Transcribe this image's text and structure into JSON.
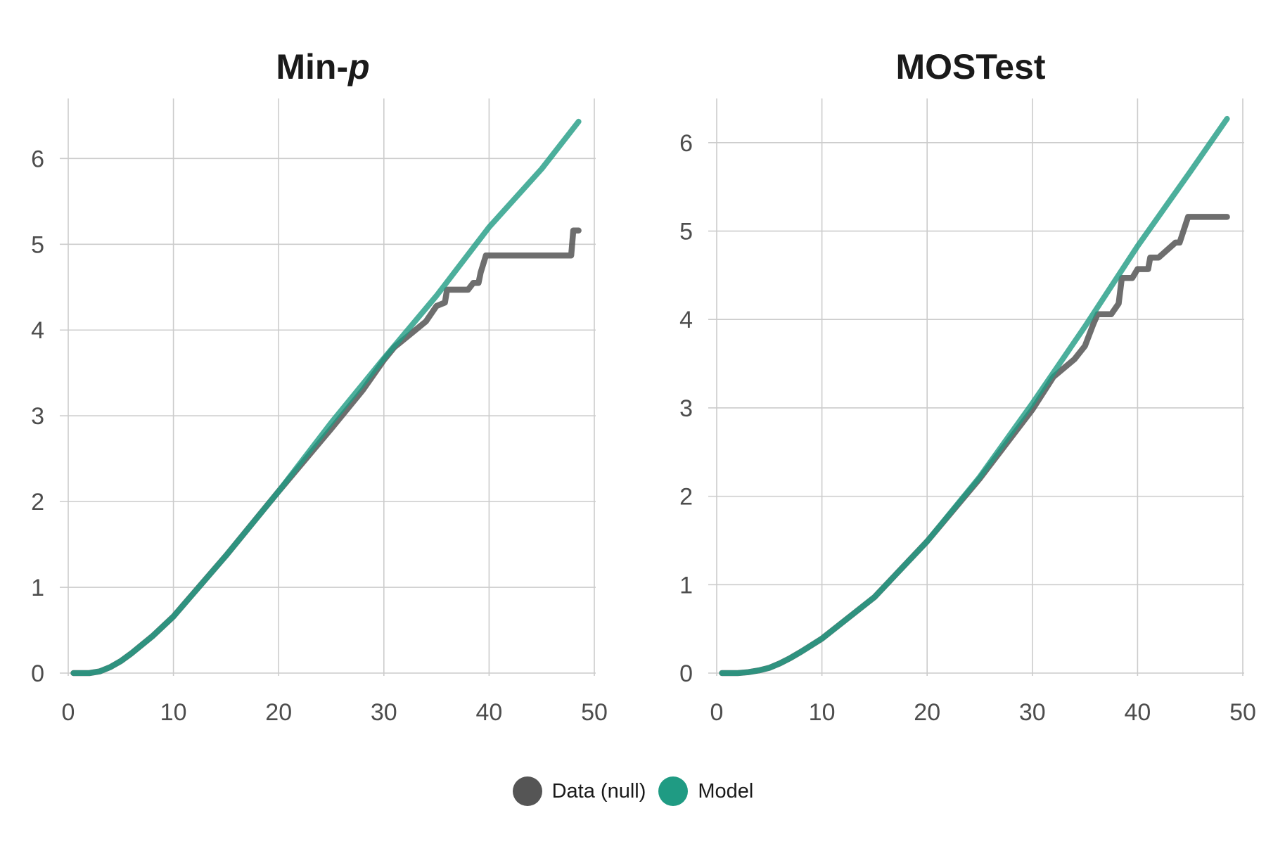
{
  "chart_data": [
    {
      "type": "line",
      "title": "Min-p",
      "title_prefix": "Min-",
      "title_italic": "p",
      "xlabel": "",
      "ylabel": "",
      "xlim": [
        0,
        50
      ],
      "ylim": [
        0,
        6.7
      ],
      "xticks": [
        "0",
        "10",
        "20",
        "30",
        "40",
        "50"
      ],
      "yticks": [
        "0",
        "1",
        "2",
        "3",
        "4",
        "5",
        "6"
      ],
      "grid": true,
      "series": [
        {
          "name": "Model",
          "color": "#1f9b83",
          "x": [
            0.5,
            2,
            3,
            4,
            5,
            6,
            7,
            8,
            10,
            15,
            20,
            25,
            30,
            35,
            40,
            45,
            48.5
          ],
          "y": [
            0,
            0,
            0.02,
            0.07,
            0.14,
            0.23,
            0.33,
            0.43,
            0.66,
            1.37,
            2.12,
            2.92,
            3.67,
            4.4,
            5.2,
            5.88,
            6.43
          ]
        },
        {
          "name": "Data (null)",
          "color": "#555555",
          "x": [
            0.5,
            2,
            3,
            4,
            5,
            6,
            7,
            8,
            10,
            15,
            20,
            25,
            28,
            30,
            31,
            32,
            33,
            34,
            35,
            35.8,
            36,
            38,
            38.5,
            39,
            39.2,
            39.7,
            44,
            47.8,
            48,
            48.5
          ],
          "y": [
            0,
            0,
            0.02,
            0.07,
            0.14,
            0.23,
            0.33,
            0.43,
            0.66,
            1.37,
            2.12,
            2.85,
            3.3,
            3.65,
            3.8,
            3.9,
            4.0,
            4.1,
            4.28,
            4.32,
            4.47,
            4.47,
            4.55,
            4.55,
            4.67,
            4.87,
            4.87,
            4.87,
            5.16,
            5.16
          ]
        }
      ]
    },
    {
      "type": "line",
      "title": "MOSTest",
      "title_prefix": "MOSTest",
      "title_italic": "",
      "xlabel": "",
      "ylabel": "",
      "xlim": [
        0,
        50
      ],
      "ylim": [
        0,
        6.5
      ],
      "xticks": [
        "0",
        "10",
        "20",
        "30",
        "40",
        "50"
      ],
      "yticks": [
        "0",
        "1",
        "2",
        "3",
        "4",
        "5",
        "6"
      ],
      "grid": true,
      "series": [
        {
          "name": "Model",
          "color": "#1f9b83",
          "x": [
            0.5,
            2,
            3,
            4,
            5,
            6,
            7,
            8,
            10,
            15,
            20,
            25,
            30,
            35,
            40,
            45,
            48.5
          ],
          "y": [
            0,
            0,
            0.01,
            0.03,
            0.06,
            0.11,
            0.17,
            0.24,
            0.39,
            0.86,
            1.49,
            2.22,
            3.05,
            3.92,
            4.83,
            5.67,
            6.27
          ]
        },
        {
          "name": "Data (null)",
          "color": "#555555",
          "x": [
            0.5,
            2,
            3,
            4,
            5,
            6,
            7,
            8,
            10,
            15,
            20,
            25,
            30,
            32,
            34,
            35,
            35.8,
            36.2,
            37.5,
            38.2,
            38.5,
            39.5,
            40,
            41,
            41.2,
            42,
            43.6,
            44,
            44.8,
            46,
            48.5
          ],
          "y": [
            0,
            0,
            0.01,
            0.03,
            0.06,
            0.11,
            0.17,
            0.24,
            0.39,
            0.86,
            1.49,
            2.2,
            2.98,
            3.35,
            3.55,
            3.7,
            3.95,
            4.06,
            4.06,
            4.18,
            4.47,
            4.47,
            4.57,
            4.57,
            4.7,
            4.7,
            4.87,
            4.87,
            5.16,
            5.16,
            5.16
          ]
        }
      ]
    }
  ],
  "legend": {
    "items": [
      {
        "label": "Data (null)",
        "color": "#555555"
      },
      {
        "label": "Model",
        "color": "#1f9b83"
      }
    ]
  }
}
